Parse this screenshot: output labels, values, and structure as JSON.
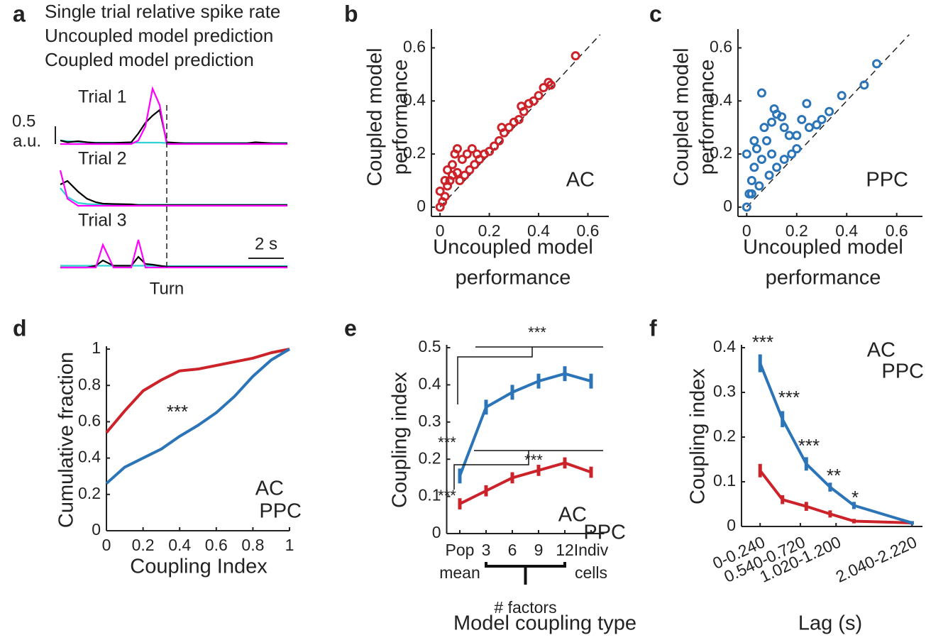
{
  "chart_data": [
    {
      "panel": "a",
      "type": "trace",
      "x": [
        -6,
        -5.6,
        -5,
        -4.5,
        -4,
        -3.6,
        -3,
        -2,
        -1.6,
        -1.2,
        -0.8,
        -0.4,
        0,
        1,
        2,
        3,
        4,
        4.5,
        5,
        6,
        6.8
      ],
      "trial_labels": [
        "Trial 1",
        "Trial 2",
        "Trial 3"
      ],
      "series": [
        {
          "name": "Single trial relative spike rate",
          "color": "#ff00ff",
          "trials": [
            [
              0,
              0,
              0,
              0,
              0,
              0,
              0,
              0,
              0.1,
              0.5,
              1.56,
              1.1,
              0,
              0,
              0,
              0,
              0,
              0,
              0,
              0,
              0
            ],
            [
              1.0,
              0.2,
              0,
              0,
              0,
              0,
              0,
              0,
              0,
              0,
              0,
              0,
              0,
              0,
              0,
              0,
              0,
              0,
              0,
              0,
              0
            ],
            [
              0,
              0,
              0,
              0,
              0,
              0.64,
              0,
              0,
              0.78,
              0,
              0,
              0,
              0,
              0,
              0,
              0,
              0,
              0,
              0,
              0,
              0
            ]
          ]
        },
        {
          "name": "Uncoupled model prediction",
          "color": "#2fd3d3",
          "trials": [
            [
              0.1,
              0.08,
              0.06,
              0.05,
              0.04,
              0.04,
              0.04,
              0.04,
              0.04,
              0.04,
              0.04,
              0.04,
              0.03,
              0.03,
              0.03,
              0.03,
              0.03,
              0.03,
              0.03,
              0.03,
              0.03
            ],
            [
              0.5,
              0.25,
              0.08,
              0.05,
              0.04,
              0.04,
              0.03,
              0.03,
              0.03,
              0.03,
              0.03,
              0.03,
              0.03,
              0.03,
              0.03,
              0.03,
              0.03,
              0.03,
              0.03,
              0.03,
              0.03
            ],
            [
              0.05,
              0.05,
              0.05,
              0.05,
              0.05,
              0.05,
              0.05,
              0.05,
              0.05,
              0.05,
              0.05,
              0.04,
              0.04,
              0.04,
              0.04,
              0.04,
              0.04,
              0.04,
              0.04,
              0.04,
              0.04
            ]
          ]
        },
        {
          "name": "Coupled model prediction",
          "color": "#000000",
          "trials": [
            [
              0.1,
              0.05,
              0.08,
              0.05,
              0.03,
              0.03,
              0.03,
              0.05,
              0.3,
              0.6,
              0.8,
              0.96,
              0.05,
              0.02,
              0.02,
              0.02,
              0.02,
              0.02,
              0.05,
              0.02,
              0.02
            ],
            [
              0.6,
              0.7,
              0.4,
              0.2,
              0.1,
              0.06,
              0.05,
              0.04,
              0.02,
              0.02,
              0.02,
              0.02,
              0.02,
              0.02,
              0.02,
              0.02,
              0.02,
              0.02,
              0.02,
              0.02,
              0.02
            ],
            [
              0,
              0,
              0,
              0,
              0.05,
              0.2,
              0.05,
              0.05,
              0.3,
              0.1,
              0.08,
              0.05,
              0.02,
              0.02,
              0.02,
              0.02,
              0.02,
              0.02,
              0.02,
              0.02,
              0.02
            ]
          ]
        }
      ],
      "y_scale_bar": {
        "value": 0.5,
        "unit": "a.u."
      },
      "x_scale_bar": {
        "value": 2,
        "label": "2 s"
      },
      "event_label": "Turn"
    },
    {
      "panel": "b",
      "type": "scatter",
      "color": "#cc2229",
      "annotation": "AC",
      "ylabel": [
        "Coupled model",
        "performance"
      ],
      "xlabel": [
        "Uncoupled model",
        "performance"
      ],
      "xlim": [
        -0.035,
        0.685
      ],
      "ylim": [
        -0.035,
        0.66
      ],
      "xticks": [
        0,
        0.2,
        0.4,
        0.6
      ],
      "yticks": [
        0,
        0.2,
        0.4,
        0.6
      ],
      "x": [
        0,
        0.01,
        0.02,
        0.03,
        0.04,
        0.05,
        0.06,
        0.07,
        0.05,
        0.08,
        0.1,
        0.12,
        0.14,
        0.16,
        0.18,
        0.2,
        0.22,
        0.24,
        0.26,
        0.28,
        0.3,
        0.32,
        0.34,
        0.36,
        0.38,
        0.4,
        0.42,
        0.44,
        0.45,
        0.55,
        0.11,
        0.09,
        0.15,
        0.02,
        0,
        0.03,
        0.25,
        0.33,
        0.13,
        0.07
      ],
      "values": [
        0,
        0.02,
        0.04,
        0.08,
        0.1,
        0.12,
        0.2,
        0.22,
        0.16,
        0.1,
        0.12,
        0.14,
        0.16,
        0.18,
        0.2,
        0.21,
        0.23,
        0.25,
        0.28,
        0.3,
        0.32,
        0.33,
        0.36,
        0.39,
        0.4,
        0.42,
        0.45,
        0.47,
        0.46,
        0.57,
        0.2,
        0.18,
        0.2,
        0.1,
        0.06,
        0.14,
        0.3,
        0.38,
        0.22,
        0.13
      ]
    },
    {
      "panel": "c",
      "type": "scatter",
      "color": "#2b74b8",
      "annotation": "PPC",
      "ylabel": [
        "Coupled model",
        "performance"
      ],
      "xlabel": [
        "Uncoupled model",
        "performance"
      ],
      "xlim": [
        -0.035,
        0.703
      ],
      "ylim": [
        -0.035,
        0.66
      ],
      "xticks": [
        0,
        0.2,
        0.4,
        0.6
      ],
      "yticks": [
        0,
        0.2,
        0.4,
        0.6
      ],
      "x": [
        0,
        0.01,
        0.02,
        0,
        0.03,
        0.04,
        0.06,
        0.06,
        0.08,
        0.1,
        0.11,
        0.12,
        0.14,
        0.15,
        0.17,
        0.2,
        0.22,
        0.24,
        0.25,
        0.28,
        0.3,
        0.33,
        0.38,
        0.47,
        0.52,
        0.09,
        0.12,
        0.15,
        0.05,
        0.02,
        0.18,
        0.2,
        0.07,
        0.03,
        0.1
      ],
      "values": [
        0,
        0.05,
        0.1,
        0.2,
        0.15,
        0.22,
        0.18,
        0.43,
        0.25,
        0.32,
        0.37,
        0.35,
        0.34,
        0.3,
        0.27,
        0.27,
        0.33,
        0.39,
        0.3,
        0.31,
        0.33,
        0.36,
        0.42,
        0.46,
        0.54,
        0.12,
        0.15,
        0.18,
        0.08,
        0.05,
        0.2,
        0.22,
        0.3,
        0.25,
        0.2
      ]
    },
    {
      "panel": "d",
      "type": "line",
      "ylabel": "Cumulative fraction",
      "xlabel": "Coupling Index",
      "annotation": "***",
      "xlim": [
        0,
        1
      ],
      "ylim": [
        0,
        1
      ],
      "xticks": [
        0,
        0.2,
        0.4,
        0.6,
        0.8,
        1
      ],
      "yticks": [
        0,
        0.2,
        0.4,
        0.6,
        0.8,
        1
      ],
      "x": [
        0,
        0.1,
        0.2,
        0.3,
        0.4,
        0.5,
        0.6,
        0.7,
        0.8,
        0.9,
        1
      ],
      "series": [
        {
          "name": "AC",
          "color": "#cc2229",
          "values": [
            0.54,
            0.66,
            0.77,
            0.83,
            0.88,
            0.89,
            0.91,
            0.93,
            0.95,
            0.98,
            1.0
          ]
        },
        {
          "name": "PPC",
          "color": "#2b74b8",
          "values": [
            0.26,
            0.35,
            0.4,
            0.45,
            0.52,
            0.58,
            0.65,
            0.74,
            0.85,
            0.94,
            1.0
          ]
        }
      ]
    },
    {
      "panel": "e",
      "type": "line",
      "ylabel": "Coupling index",
      "xlabel": "Model coupling type",
      "group_label": "# factors",
      "categories": [
        "Pop",
        "3",
        "6",
        "9",
        "12",
        "Indiv"
      ],
      "sublabels": [
        "mean",
        null,
        null,
        null,
        null,
        "cells"
      ],
      "ylim": [
        0,
        0.5
      ],
      "yticks": [
        0,
        0.1,
        0.2,
        0.3,
        0.4,
        0.5
      ],
      "annotations": [
        {
          "text": "***",
          "color": "#2b74b8"
        },
        {
          "text": "***",
          "color": "#2b74b8"
        },
        {
          "text": "***",
          "color": "#cc2229"
        },
        {
          "text": "***",
          "color": "#cc2229"
        }
      ],
      "series": [
        {
          "name": "AC",
          "color": "#cc2229",
          "values": [
            0.08,
            0.115,
            0.15,
            0.17,
            0.19,
            0.165
          ],
          "errors": [
            0.015,
            0.015,
            0.015,
            0.015,
            0.015,
            0.015
          ]
        },
        {
          "name": "PPC",
          "color": "#2b74b8",
          "values": [
            0.155,
            0.34,
            0.38,
            0.41,
            0.43,
            0.41
          ],
          "errors": [
            0.02,
            0.02,
            0.02,
            0.02,
            0.02,
            0.02
          ]
        }
      ]
    },
    {
      "panel": "f",
      "type": "line",
      "ylabel": "Coupling index",
      "xlabel": "Lag (s)",
      "xlim": [
        -0.25,
        2.18
      ],
      "ylim": [
        0,
        0.4
      ],
      "xticks": [
        {
          "value": 0,
          "label": "0-0.240"
        },
        {
          "value": 0.54,
          "label": "0.540-0.720"
        },
        {
          "value": 1.02,
          "label": "1.020-1.200"
        },
        {
          "value": 2.04,
          "label": "2.040-2.220"
        }
      ],
      "yticks": [
        0,
        0.1,
        0.2,
        0.3,
        0.4
      ],
      "x": [
        0,
        0.3,
        0.62,
        0.94,
        1.26,
        2.04
      ],
      "annotations": [
        {
          "text": "***",
          "color": "#000000"
        },
        {
          "text": "***",
          "color": "#000000"
        },
        {
          "text": "***",
          "color": "#000000"
        },
        {
          "text": "**",
          "color": "#000000"
        },
        {
          "text": "*",
          "color": "#000000"
        }
      ],
      "series": [
        {
          "name": "AC",
          "color": "#cc2229",
          "values": [
            0.125,
            0.06,
            0.045,
            0.028,
            0.012,
            0.008
          ],
          "errors": [
            0.015,
            0.01,
            0.01,
            0.008,
            0.005,
            0.004
          ]
        },
        {
          "name": "PPC",
          "color": "#2b74b8",
          "values": [
            0.365,
            0.24,
            0.14,
            0.088,
            0.047,
            0.008
          ],
          "errors": [
            0.02,
            0.018,
            0.015,
            0.01,
            0.008,
            0.004
          ]
        }
      ]
    }
  ]
}
